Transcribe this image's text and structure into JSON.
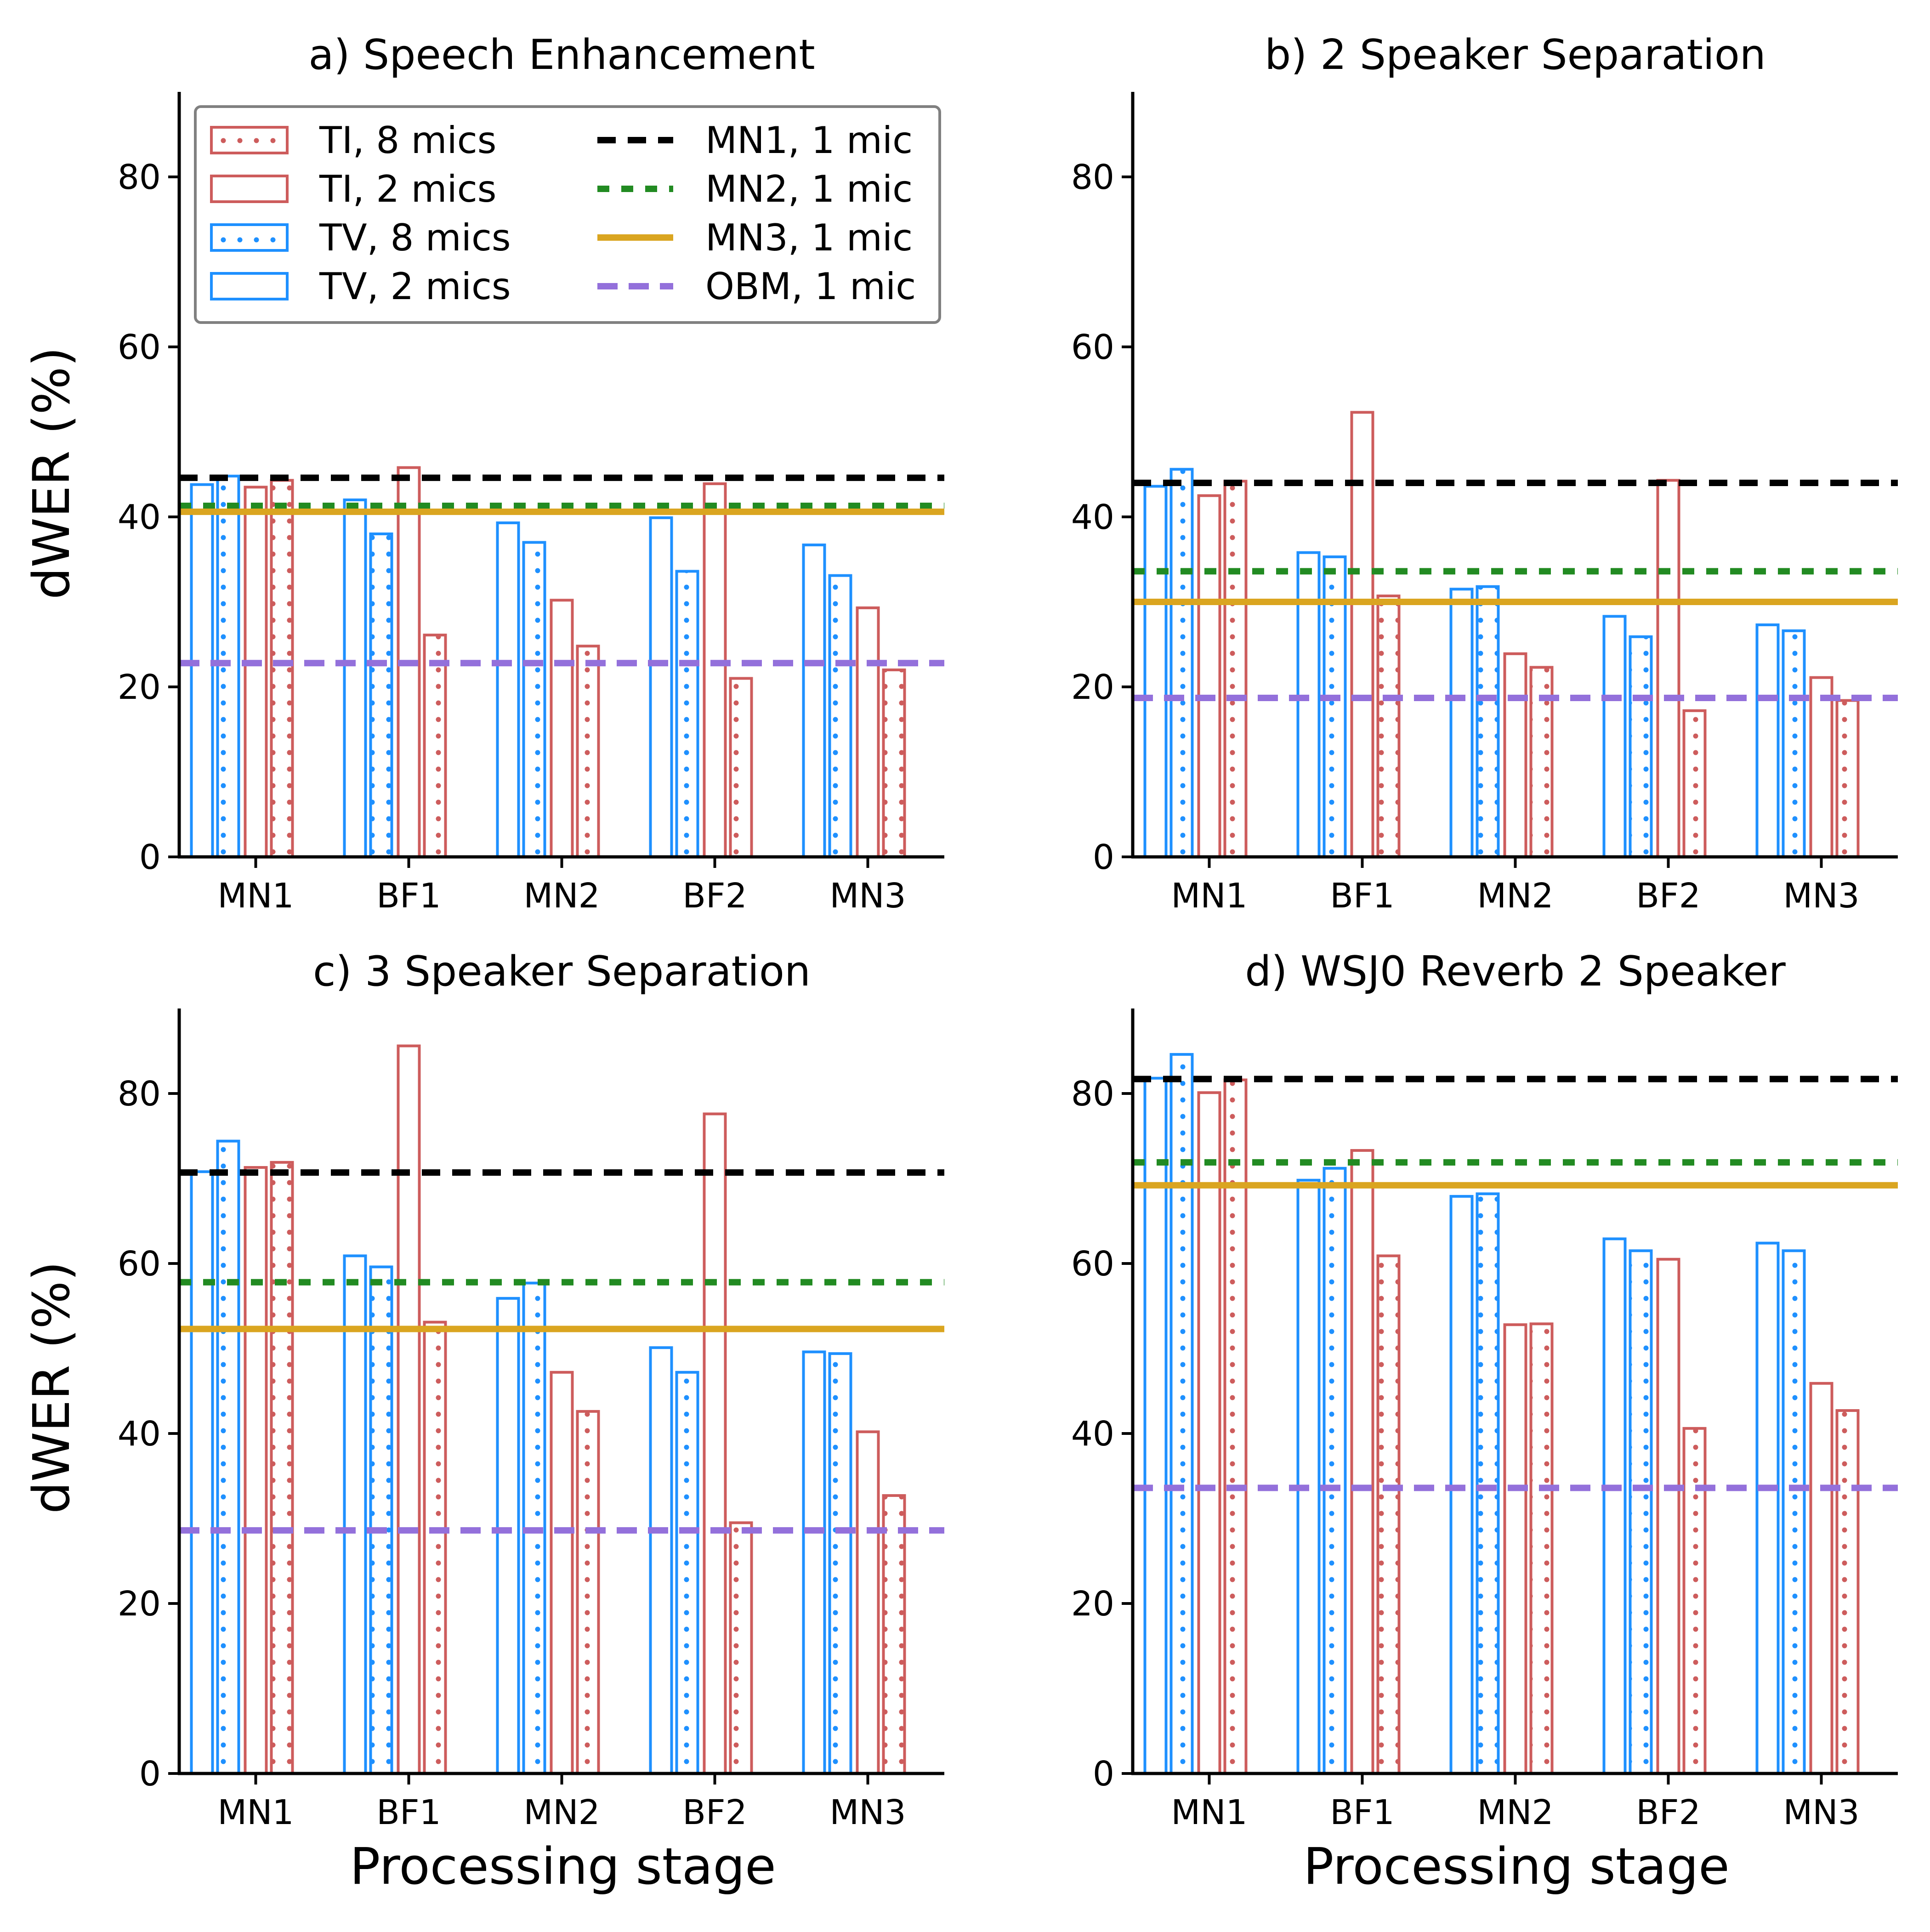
{
  "figure": {
    "ylabel": "dWER (%)",
    "xlabel": "Processing stage"
  },
  "legend": {
    "placement": "upper-left of panel a",
    "entries": [
      {
        "label": "TI, 8 mics",
        "kind": "bar",
        "color": "#CD5C5C",
        "hatch": "dots"
      },
      {
        "label": "TI, 2 mics",
        "kind": "bar",
        "color": "#CD5C5C",
        "hatch": "none"
      },
      {
        "label": "TV, 8 mics",
        "kind": "bar",
        "color": "#1E90FF",
        "hatch": "dots"
      },
      {
        "label": "TV, 2 mics",
        "kind": "bar",
        "color": "#1E90FF",
        "hatch": "none"
      },
      {
        "label": "MN1, 1 mic",
        "kind": "line",
        "color": "#000000",
        "dash": "long"
      },
      {
        "label": "MN2, 1 mic",
        "kind": "line",
        "color": "#228B22",
        "dash": "short"
      },
      {
        "label": "MN3, 1 mic",
        "kind": "line",
        "color": "#DAA520",
        "dash": "solid"
      },
      {
        "label": "OBM, 1 mic",
        "kind": "line",
        "color": "#9370DB",
        "dash": "long"
      }
    ]
  },
  "chart_data": [
    {
      "type": "bar",
      "title": "a) Speech Enhancement",
      "categories": [
        "MN1",
        "BF1",
        "MN2",
        "BF2",
        "MN3"
      ],
      "ylim": [
        0,
        90
      ],
      "yticks": [
        0,
        20,
        40,
        60,
        80
      ],
      "series": [
        {
          "name": "TV, 2 mics",
          "values": [
            43.8,
            42.0,
            39.3,
            39.9,
            36.7
          ]
        },
        {
          "name": "TV, 8 mics",
          "values": [
            44.8,
            38.0,
            37.0,
            33.6,
            33.1
          ]
        },
        {
          "name": "TI, 2 mics",
          "values": [
            43.5,
            45.8,
            30.2,
            43.9,
            29.3
          ]
        },
        {
          "name": "TI, 8 mics",
          "values": [
            44.3,
            26.1,
            24.8,
            21.0,
            22.0
          ]
        }
      ],
      "reference_lines": [
        {
          "name": "MN1, 1 mic",
          "value": 44.6
        },
        {
          "name": "MN2, 1 mic",
          "value": 41.3
        },
        {
          "name": "MN3, 1 mic",
          "value": 40.6
        },
        {
          "name": "OBM, 1 mic",
          "value": 22.8
        }
      ]
    },
    {
      "type": "bar",
      "title": "b) 2 Speaker Separation",
      "categories": [
        "MN1",
        "BF1",
        "MN2",
        "BF2",
        "MN3"
      ],
      "ylim": [
        0,
        90
      ],
      "yticks": [
        0,
        20,
        40,
        60,
        80
      ],
      "series": [
        {
          "name": "TV, 2 mics",
          "values": [
            43.6,
            35.8,
            31.5,
            28.3,
            27.3
          ]
        },
        {
          "name": "TV, 8 mics",
          "values": [
            45.6,
            35.3,
            31.8,
            25.9,
            26.6
          ]
        },
        {
          "name": "TI, 2 mics",
          "values": [
            42.5,
            52.3,
            23.9,
            44.3,
            21.1
          ]
        },
        {
          "name": "TI, 8 mics",
          "values": [
            44.2,
            30.7,
            22.3,
            17.2,
            18.4
          ]
        }
      ],
      "reference_lines": [
        {
          "name": "MN1, 1 mic",
          "value": 44.0
        },
        {
          "name": "MN2, 1 mic",
          "value": 33.6
        },
        {
          "name": "MN3, 1 mic",
          "value": 30.0
        },
        {
          "name": "OBM, 1 mic",
          "value": 18.7
        }
      ]
    },
    {
      "type": "bar",
      "title": "c) 3 Speaker Separation",
      "categories": [
        "MN1",
        "BF1",
        "MN2",
        "BF2",
        "MN3"
      ],
      "ylim": [
        0,
        90
      ],
      "yticks": [
        0,
        20,
        40,
        60,
        80
      ],
      "series": [
        {
          "name": "TV, 2 mics",
          "values": [
            70.8,
            60.9,
            55.9,
            50.1,
            49.6
          ]
        },
        {
          "name": "TV, 8 mics",
          "values": [
            74.4,
            59.6,
            57.7,
            47.2,
            49.4
          ]
        },
        {
          "name": "TI, 2 mics",
          "values": [
            71.3,
            85.6,
            47.2,
            77.6,
            40.2
          ]
        },
        {
          "name": "TI, 8 mics",
          "values": [
            71.9,
            53.1,
            42.6,
            29.5,
            32.7
          ]
        }
      ],
      "reference_lines": [
        {
          "name": "MN1, 1 mic",
          "value": 70.7
        },
        {
          "name": "MN2, 1 mic",
          "value": 57.8
        },
        {
          "name": "MN3, 1 mic",
          "value": 52.3
        },
        {
          "name": "OBM, 1 mic",
          "value": 28.6
        }
      ]
    },
    {
      "type": "bar",
      "title": "d) WSJ0 Reverb 2 Speaker",
      "categories": [
        "MN1",
        "BF1",
        "MN2",
        "BF2",
        "MN3"
      ],
      "ylim": [
        0,
        90
      ],
      "yticks": [
        0,
        20,
        40,
        60,
        80
      ],
      "series": [
        {
          "name": "TV, 2 mics",
          "values": [
            81.8,
            69.8,
            67.9,
            62.9,
            62.4
          ]
        },
        {
          "name": "TV, 8 mics",
          "values": [
            84.6,
            71.2,
            68.2,
            61.5,
            61.5
          ]
        },
        {
          "name": "TI, 2 mics",
          "values": [
            80.1,
            73.3,
            52.8,
            60.5,
            45.9
          ]
        },
        {
          "name": "TI, 8 mics",
          "values": [
            81.6,
            60.9,
            52.9,
            40.6,
            42.7
          ]
        }
      ],
      "reference_lines": [
        {
          "name": "MN1, 1 mic",
          "value": 81.7
        },
        {
          "name": "MN2, 1 mic",
          "value": 71.9
        },
        {
          "name": "MN3, 1 mic",
          "value": 69.2
        },
        {
          "name": "OBM, 1 mic",
          "value": 33.6
        }
      ]
    }
  ]
}
